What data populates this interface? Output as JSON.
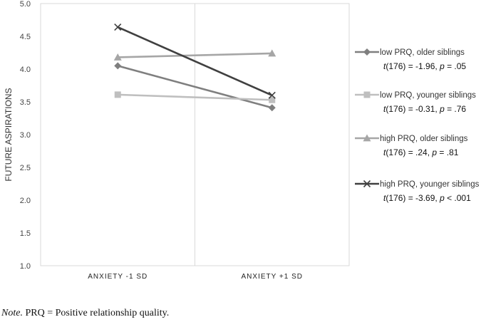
{
  "chart_data": {
    "type": "line",
    "ylabel": "FUTURE ASPIRATIONS",
    "xlabel": "",
    "ylim": [
      1.0,
      5.0
    ],
    "yticks": [
      "1.0",
      "1.5",
      "2.0",
      "2.5",
      "3.0",
      "3.5",
      "4.0",
      "4.5",
      "5.0"
    ],
    "categories": [
      "ANXIETY -1 SD",
      "ANXIETY +1 SD"
    ],
    "grid": "vertical divider between categories",
    "legend_position": "right",
    "series": [
      {
        "name": "low PRQ, older siblings",
        "values": [
          4.05,
          3.41
        ],
        "marker": "diamond",
        "color": "#7f7f7f",
        "stat": {
          "t": "t",
          "df": "(176) = -1.96, ",
          "p": "p",
          "rest": " = .05"
        }
      },
      {
        "name": "low PRQ, younger siblings",
        "values": [
          3.61,
          3.53
        ],
        "marker": "square",
        "color": "#bfbfbf",
        "stat": {
          "t": "t",
          "df": "(176) = -0.31, ",
          "p": "p",
          "rest": " = .76"
        }
      },
      {
        "name": "high PRQ, older siblings",
        "values": [
          4.18,
          4.24
        ],
        "marker": "triangle",
        "color": "#a6a6a6",
        "stat": {
          "t": "t",
          "df": "(176) = .24, ",
          "p": "p",
          "rest": " = .81"
        }
      },
      {
        "name": "high PRQ, younger siblings",
        "values": [
          4.64,
          3.6
        ],
        "marker": "x",
        "color": "#404040",
        "stat": {
          "t": "t",
          "df": "(176) = -3.69, ",
          "p": "p",
          "rest": " < .001"
        }
      }
    ]
  },
  "note": {
    "label": "Note.",
    "text": " PRQ = Positive relationship quality."
  }
}
